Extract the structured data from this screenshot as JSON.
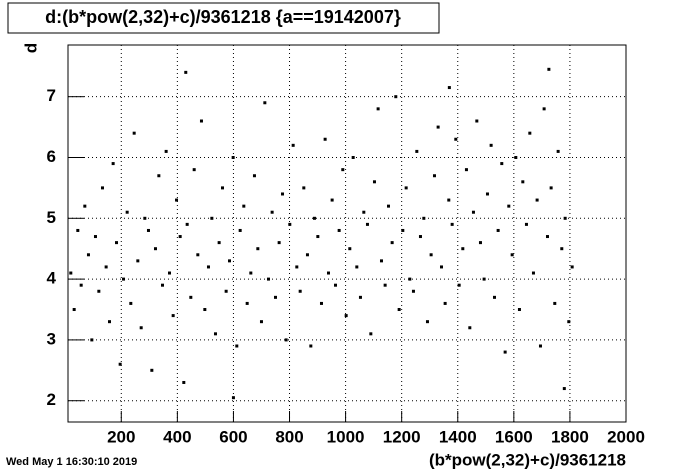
{
  "chart_data": {
    "type": "scatter",
    "title": "d:(b*pow(2,32)+c)/9361218 {a==19142007}",
    "x_label": "(b*pow(2,32)+c)/9361218",
    "y_label": "d",
    "timestamp": "Wed May  1 16:30:10 2019",
    "color": "#000000",
    "grid": true,
    "xlim": [
      10,
      2000
    ],
    "ylim": [
      1.65,
      7.85
    ],
    "xticks": [
      200,
      400,
      600,
      800,
      1000,
      1200,
      1400,
      1600,
      1800,
      2000
    ],
    "yticks": [
      2,
      3,
      4,
      5,
      6,
      7
    ],
    "x": [
      20,
      32,
      45,
      57,
      70,
      83,
      95,
      108,
      120,
      133,
      146,
      158,
      171,
      183,
      196,
      208,
      221,
      234,
      246,
      259,
      271,
      284,
      297,
      309,
      322,
      334,
      347,
      360,
      372,
      385,
      397,
      410,
      423,
      435,
      448,
      460,
      473,
      486,
      498,
      511,
      523,
      536,
      549,
      561,
      574,
      586,
      599,
      612,
      624,
      637,
      649,
      662,
      675,
      687,
      700,
      712,
      725,
      738,
      750,
      763,
      775,
      788,
      801,
      813,
      826,
      838,
      851,
      864,
      876,
      889,
      901,
      914,
      927,
      939,
      952,
      964,
      977,
      990,
      1002,
      1015,
      1027,
      1040,
      1053,
      1065,
      1078,
      1090,
      1103,
      1116,
      1128,
      1141,
      1153,
      1166,
      1179,
      1191,
      1204,
      1216,
      1229,
      1242,
      1254,
      1267,
      1279,
      1292,
      1305,
      1317,
      1330,
      1342,
      1355,
      1368,
      1380,
      1393,
      1405,
      1418,
      1431,
      1443,
      1456,
      1468,
      1481,
      1494,
      1506,
      1519,
      1531,
      1544,
      1557,
      1569,
      1582,
      1594,
      1607,
      1620,
      1632,
      1645,
      1657,
      1670,
      1683,
      1695,
      1708,
      1720,
      1733,
      1746,
      1758,
      1771,
      1783,
      1796,
      1808,
      430,
      600,
      1370,
      1725,
      1780
    ],
    "values": [
      4.1,
      3.5,
      4.8,
      3.9,
      5.2,
      4.4,
      3.0,
      4.7,
      3.8,
      5.5,
      4.2,
      3.3,
      5.9,
      4.6,
      2.6,
      4.0,
      5.1,
      3.6,
      6.4,
      4.3,
      3.2,
      5.0,
      4.8,
      2.5,
      4.5,
      5.7,
      3.9,
      6.1,
      4.1,
      3.4,
      5.3,
      4.7,
      2.3,
      4.9,
      3.7,
      5.8,
      4.4,
      6.6,
      3.5,
      4.2,
      5.0,
      3.1,
      4.6,
      5.5,
      3.8,
      4.3,
      6.0,
      2.9,
      4.8,
      5.2,
      3.6,
      4.1,
      5.7,
      4.5,
      3.3,
      6.9,
      4.0,
      5.1,
      3.7,
      4.6,
      5.4,
      3.0,
      4.9,
      6.2,
      4.2,
      3.8,
      5.5,
      4.4,
      2.9,
      5.0,
      4.7,
      3.6,
      6.3,
      4.1,
      5.3,
      3.9,
      4.8,
      5.8,
      3.4,
      4.5,
      6.0,
      4.2,
      3.7,
      5.1,
      4.9,
      3.1,
      5.6,
      6.8,
      4.3,
      3.9,
      5.2,
      4.6,
      7.0,
      3.5,
      4.8,
      5.5,
      4.0,
      3.8,
      6.1,
      4.7,
      5.0,
      3.3,
      4.4,
      5.7,
      6.5,
      4.2,
      3.6,
      5.3,
      4.9,
      6.3,
      3.9,
      4.5,
      5.8,
      3.2,
      5.1,
      6.6,
      4.6,
      4.0,
      5.4,
      6.2,
      3.7,
      4.8,
      5.9,
      2.8,
      5.2,
      4.4,
      6.0,
      3.5,
      5.6,
      4.9,
      6.4,
      4.1,
      5.3,
      2.9,
      6.8,
      4.7,
      5.5,
      3.6,
      6.1,
      4.5,
      5.0,
      3.3,
      4.2,
      7.4,
      2.05,
      7.15,
      7.45,
      2.2
    ]
  }
}
